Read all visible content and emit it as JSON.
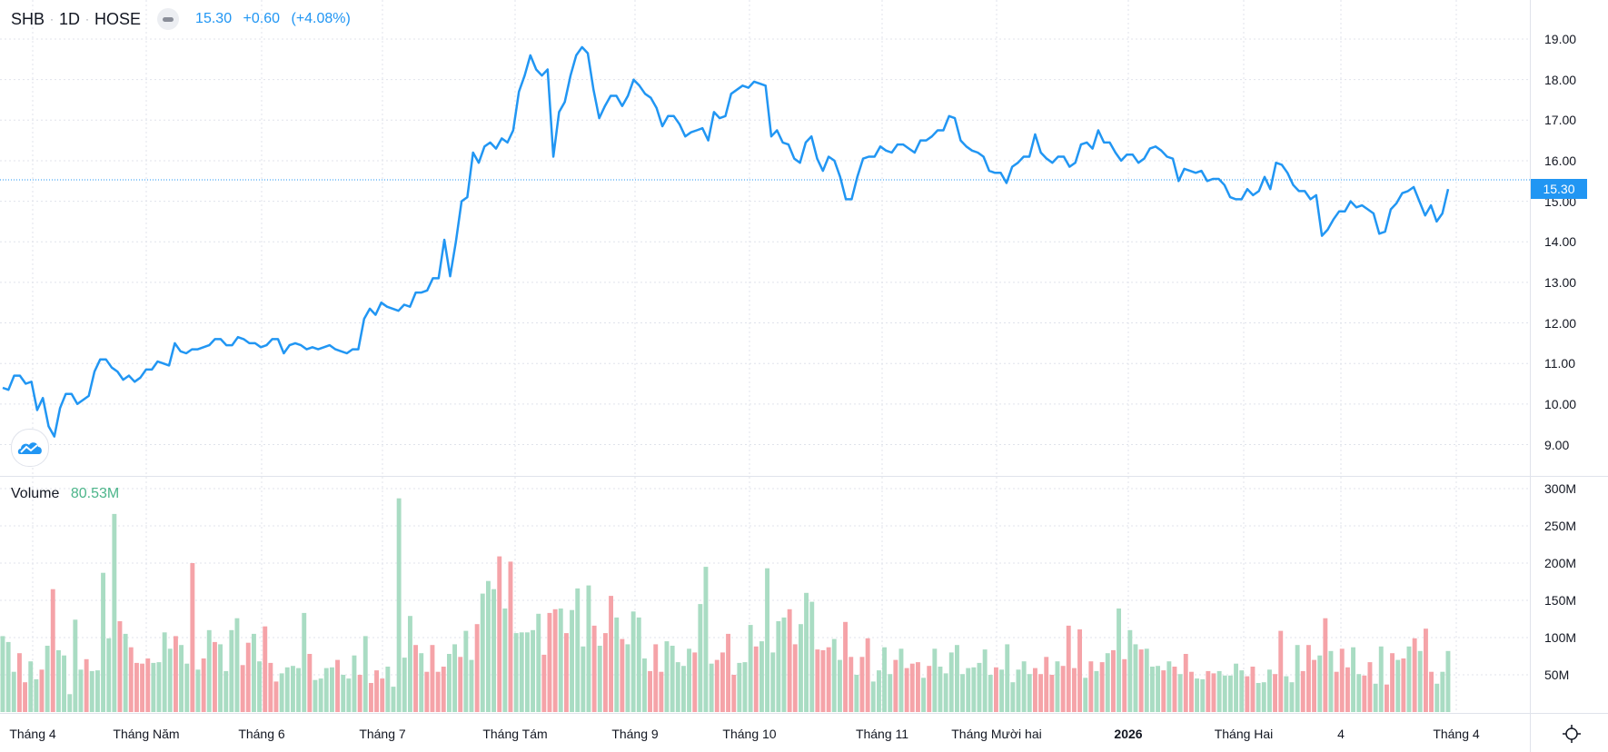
{
  "header": {
    "symbol": "SHB",
    "interval": "1D",
    "exchange": "HOSE",
    "separator": "·",
    "last_price": "15.30",
    "change": "+0.60",
    "change_pct": "(+4.08%)"
  },
  "volume_legend": {
    "label": "Volume",
    "value": "80.53M"
  },
  "price_axis": {
    "ticks": [
      "19.00",
      "18.00",
      "17.00",
      "16.00",
      "15.00",
      "14.00",
      "13.00",
      "12.00",
      "11.00",
      "10.00",
      "9.00"
    ],
    "last_tag": "15.30"
  },
  "volume_axis": {
    "ticks": [
      "300M",
      "250M",
      "200M",
      "150M",
      "100M",
      "50M"
    ]
  },
  "time_axis": {
    "labels": [
      "Tháng 4",
      "Tháng Năm",
      "Tháng 6",
      "Tháng 7",
      "Tháng Tám",
      "Tháng 9",
      "Tháng 10",
      "Tháng 11",
      "Tháng Mười hai",
      "2026",
      "Tháng Hai",
      "4",
      "Tháng 4"
    ]
  },
  "colors": {
    "line": "#2196f3",
    "up": "#a9dcc3",
    "down": "#f5a3a8",
    "grid": "#e0e3eb"
  },
  "icons": {
    "logo": "tradingview-cloud-icon",
    "settings": "gear-icon",
    "collapse": "minus-icon"
  },
  "chart_data": {
    "type": "line",
    "title": "SHB · 1D · HOSE",
    "price": {
      "ylim": [
        8.2,
        20.0
      ],
      "values": [
        10.4,
        10.35,
        10.7,
        10.7,
        10.5,
        10.55,
        9.85,
        10.15,
        9.45,
        9.2,
        9.9,
        10.25,
        10.25,
        10.0,
        10.1,
        10.2,
        10.8,
        11.1,
        11.1,
        10.9,
        10.8,
        10.6,
        10.7,
        10.55,
        10.65,
        10.85,
        10.85,
        11.05,
        11.0,
        10.95,
        11.5,
        11.3,
        11.25,
        11.35,
        11.35,
        11.4,
        11.45,
        11.6,
        11.6,
        11.45,
        11.45,
        11.65,
        11.6,
        11.5,
        11.5,
        11.4,
        11.45,
        11.6,
        11.6,
        11.25,
        11.45,
        11.5,
        11.45,
        11.35,
        11.4,
        11.35,
        11.4,
        11.45,
        11.35,
        11.3,
        11.25,
        11.35,
        11.35,
        12.1,
        12.35,
        12.2,
        12.5,
        12.4,
        12.35,
        12.3,
        12.45,
        12.4,
        12.75,
        12.75,
        12.8,
        13.1,
        13.1,
        14.05,
        13.15,
        14.0,
        15.0,
        15.1,
        16.2,
        15.95,
        16.35,
        16.45,
        16.3,
        16.55,
        16.45,
        16.75,
        17.7,
        18.1,
        18.6,
        18.25,
        18.1,
        18.25,
        16.1,
        17.2,
        17.45,
        18.1,
        18.6,
        18.8,
        18.65,
        17.75,
        17.05,
        17.35,
        17.6,
        17.6,
        17.35,
        17.6,
        18.0,
        17.85,
        17.65,
        17.55,
        17.3,
        16.85,
        17.1,
        17.1,
        16.9,
        16.6,
        16.7,
        16.75,
        16.8,
        16.5,
        17.2,
        17.05,
        17.1,
        17.65,
        17.75,
        17.85,
        17.8,
        17.95,
        17.9,
        17.85,
        16.6,
        16.75,
        16.45,
        16.4,
        16.05,
        15.95,
        16.45,
        16.6,
        16.05,
        15.75,
        16.1,
        16.0,
        15.6,
        15.05,
        15.05,
        15.6,
        16.05,
        16.1,
        16.1,
        16.35,
        16.25,
        16.2,
        16.4,
        16.4,
        16.3,
        16.2,
        16.5,
        16.5,
        16.6,
        16.75,
        16.75,
        17.1,
        17.05,
        16.5,
        16.35,
        16.25,
        16.2,
        16.1,
        15.75,
        15.7,
        15.7,
        15.45,
        15.85,
        15.95,
        16.1,
        16.1,
        16.65,
        16.2,
        16.05,
        15.95,
        16.1,
        16.1,
        15.85,
        15.95,
        16.4,
        16.45,
        16.3,
        16.75,
        16.45,
        16.45,
        16.2,
        16.0,
        16.15,
        16.15,
        15.95,
        16.05,
        16.3,
        16.35,
        16.25,
        16.1,
        16.05,
        15.5,
        15.8,
        15.75,
        15.7,
        15.75,
        15.5,
        15.55,
        15.55,
        15.4,
        15.1,
        15.05,
        15.05,
        15.3,
        15.15,
        15.25,
        15.6,
        15.3,
        15.95,
        15.9,
        15.7,
        15.4,
        15.25,
        15.25,
        15.05,
        15.15,
        14.15,
        14.3,
        14.55,
        14.75,
        14.75,
        15.0,
        14.85,
        14.9,
        14.8,
        14.7,
        14.2,
        14.25,
        14.8,
        14.95,
        15.2,
        15.25,
        15.35,
        15.0,
        14.65,
        14.9,
        14.5,
        14.7,
        15.3
      ],
      "last": 15.3
    },
    "volume": {
      "unit": "M",
      "ylim": [
        0,
        318
      ],
      "values": [
        102,
        94,
        54,
        79,
        40,
        68,
        44,
        57,
        89,
        165,
        83,
        76,
        24,
        124,
        57,
        71,
        55,
        56,
        187,
        99,
        266,
        122,
        105,
        87,
        66,
        65,
        72,
        66,
        67,
        107,
        85,
        102,
        90,
        65,
        200,
        57,
        72,
        110,
        94,
        91,
        55,
        110,
        126,
        63,
        93,
        105,
        68,
        115,
        66,
        41,
        52,
        60,
        62,
        59,
        133,
        78,
        43,
        45,
        59,
        60,
        70,
        50,
        45,
        76,
        50,
        102,
        39,
        56,
        45,
        61,
        34,
        287,
        73,
        129,
        90,
        79,
        54,
        90,
        54,
        61,
        78,
        91,
        74,
        109,
        70,
        118,
        159,
        176,
        165,
        209,
        139,
        202,
        106,
        107,
        107,
        110,
        132,
        77,
        133,
        138,
        139,
        106,
        137,
        166,
        88,
        170,
        116,
        89,
        106,
        156,
        127,
        98,
        91,
        135,
        127,
        72,
        55,
        91,
        54,
        95,
        89,
        67,
        62,
        85,
        80,
        145,
        195,
        65,
        70,
        80,
        105,
        50,
        66,
        67,
        117,
        88,
        95,
        193,
        80,
        122,
        127,
        138,
        91,
        118,
        160,
        148,
        84,
        83,
        87,
        98,
        70,
        121,
        74,
        50,
        74,
        99,
        41,
        56,
        87,
        51,
        70,
        85,
        59,
        65,
        67,
        46,
        62,
        85,
        61,
        52,
        80,
        90,
        51,
        59,
        60,
        66,
        84,
        50,
        60,
        57,
        91,
        40,
        57,
        68,
        51,
        59,
        51,
        74,
        50,
        68,
        62,
        116,
        59,
        111,
        46,
        68,
        55,
        67,
        79,
        83,
        139,
        71,
        110,
        91,
        84,
        85,
        61,
        62,
        56,
        68,
        61,
        51,
        78,
        54,
        45,
        44,
        55,
        52,
        55,
        49,
        49,
        65,
        56,
        48,
        61,
        39,
        40,
        57,
        51,
        109,
        48,
        40,
        90,
        55,
        90,
        70,
        76,
        126,
        82,
        54,
        85,
        60,
        87,
        51,
        49,
        67,
        38,
        88,
        37,
        79,
        70,
        72,
        88,
        99,
        82,
        112,
        54,
        38,
        54,
        82
      ],
      "direction": "gggrrggrgrgggggrgggggrgrrrrggggrggrgrgrggggrrggrrrgggggrggggrgggrgrrrgggggrgrrrrggrggrgggrgrgggggrrrgrggggrgrrgrggggrrrgggggrgggrrrrgggrgggggrrgggrrrggrrgrrggggrgrrrgrgggggggggggrggggggrrrrgrrrrgrgrgrgrggrgggrgrgrrggrrgggggrrgggrrgggrrrgrgrrrggrrggrrgrgrgrrgggrgrgggrggrrgggggrrgrgg"
    },
    "xlabel": "",
    "ylabel": "",
    "grid": true,
    "legend": "top-left"
  }
}
